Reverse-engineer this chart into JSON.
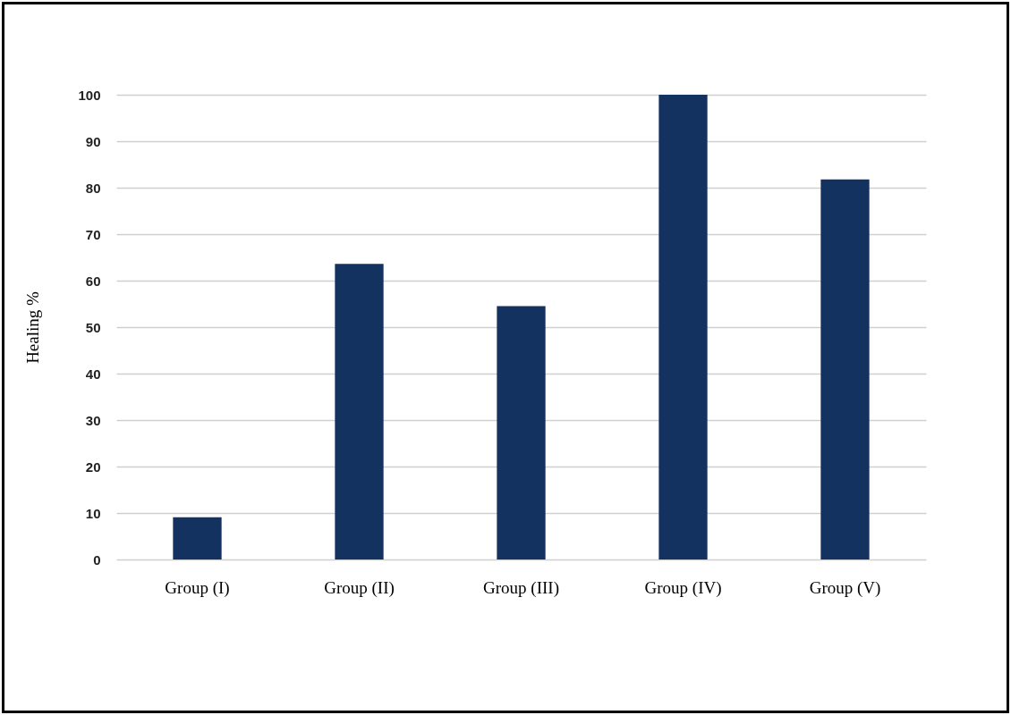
{
  "chart_data": {
    "type": "bar",
    "ylabel": "Healing %",
    "categories": [
      "Group (I)",
      "Group (II)",
      "Group (III)",
      "Group (IV)",
      "Group (V)"
    ],
    "values": [
      9.1,
      63.6,
      54.5,
      100,
      81.8
    ],
    "color": "#14325f",
    "ylim": [
      0,
      100
    ],
    "yticks": [
      0,
      10,
      20,
      30,
      40,
      50,
      60,
      70,
      80,
      90,
      100
    ],
    "grid": true
  }
}
